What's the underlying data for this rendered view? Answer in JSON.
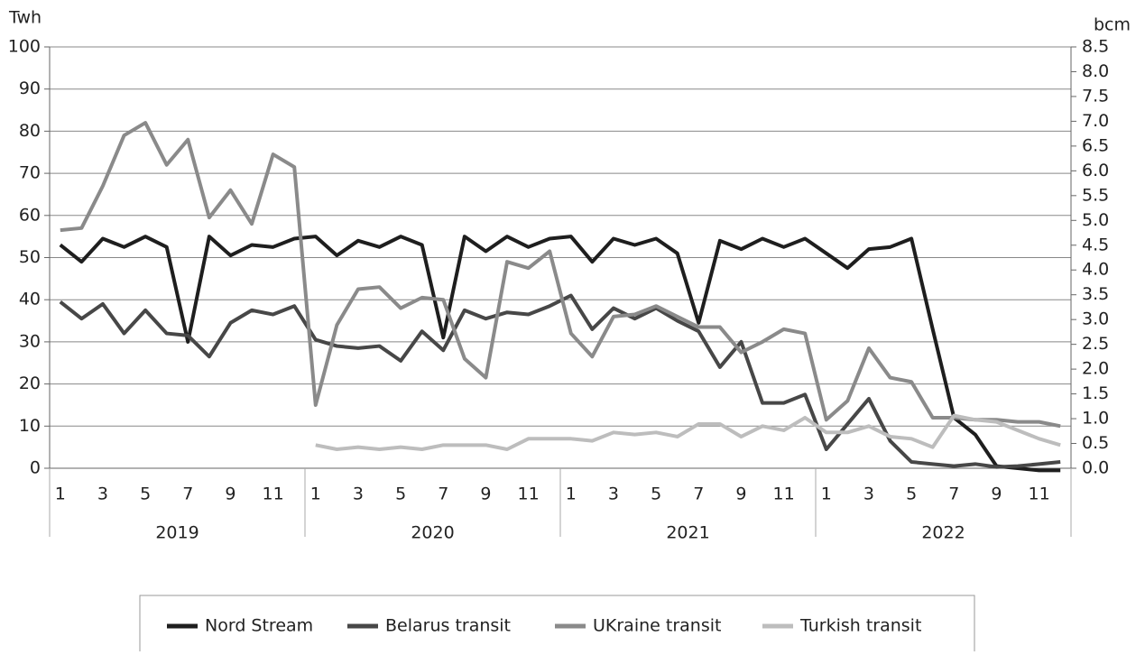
{
  "chart_data": {
    "type": "line",
    "y_label": "Twh",
    "y2_label": "bcm",
    "categories": [
      "1",
      null,
      "3",
      null,
      "5",
      null,
      "7",
      null,
      "9",
      null,
      "11",
      null,
      "1",
      null,
      "3",
      null,
      "5",
      null,
      "7",
      null,
      "9",
      null,
      "11",
      null,
      "1",
      null,
      "3",
      null,
      "5",
      null,
      "7",
      null,
      "9",
      null,
      "11",
      null,
      "1",
      null,
      "3",
      null,
      "5",
      null,
      "7",
      null,
      "9",
      null,
      "11",
      null
    ],
    "groups": [
      "2019",
      "2020",
      "2021",
      "2022"
    ],
    "series": [
      {
        "name": "Nord Stream",
        "color": "#1e1e1e",
        "values": [
          53,
          49,
          54.5,
          52.5,
          55,
          52.5,
          30,
          55,
          50.5,
          53,
          52.5,
          54.5,
          55,
          50.5,
          54,
          52.5,
          55,
          53,
          31,
          55,
          51.5,
          55,
          52.5,
          54.5,
          55,
          49,
          54.5,
          53,
          54.5,
          51,
          34.5,
          54,
          52,
          54.5,
          52.5,
          54.5,
          51,
          47.5,
          52,
          52.5,
          54.5,
          33,
          12,
          8,
          0.5,
          0,
          -0.5,
          -0.5
        ]
      },
      {
        "name": "Belarus transit",
        "color": "#474747",
        "values": [
          39.5,
          35.5,
          39,
          32,
          37.5,
          32,
          31.5,
          26.5,
          34.5,
          37.5,
          36.5,
          38.5,
          30.5,
          29,
          28.5,
          29,
          25.5,
          32.5,
          28,
          37.5,
          35.5,
          37,
          36.5,
          38.5,
          41,
          33,
          38,
          35.5,
          38,
          35,
          32.5,
          24,
          30,
          15.5,
          15.5,
          17.5,
          4.5,
          10.5,
          16.5,
          6.5,
          1.5,
          1,
          0.5,
          1,
          0.3,
          0.5,
          1,
          1.5
        ]
      },
      {
        "name": "UKraine transit",
        "color": "#8a8a8a",
        "values": [
          56.5,
          57,
          67,
          79,
          82,
          72,
          78,
          59.5,
          66,
          58,
          74.5,
          71.5,
          15,
          34,
          42.5,
          43,
          38,
          40.5,
          40,
          26,
          21.5,
          49,
          47.5,
          51.5,
          32,
          26.5,
          36,
          36.5,
          38.5,
          36,
          33.5,
          33.5,
          27.5,
          30,
          33,
          32,
          11.5,
          16,
          28.5,
          21.5,
          20.5,
          12,
          12,
          11.5,
          11.5,
          11,
          11,
          10
        ]
      },
      {
        "name": "Turkish  transit",
        "color": "#bdbdbd",
        "values": [
          null,
          null,
          null,
          null,
          null,
          null,
          null,
          null,
          null,
          null,
          null,
          null,
          5.5,
          4.5,
          5,
          4.5,
          5,
          4.5,
          5.5,
          5.5,
          5.5,
          4.5,
          7,
          7,
          7,
          6.5,
          8.5,
          8,
          8.5,
          7.5,
          10.5,
          10.5,
          7.5,
          10,
          9,
          12,
          8.5,
          8.5,
          10,
          7.5,
          7,
          5,
          12.5,
          11.5,
          11,
          9,
          7,
          5.5
        ]
      }
    ],
    "ylim": [
      0,
      100
    ],
    "yticks": [
      0,
      10,
      20,
      30,
      40,
      50,
      60,
      70,
      80,
      90,
      100
    ],
    "y2lim": [
      0,
      8.5
    ],
    "y2ticks": [
      {
        "value": 0,
        "label": "0.0"
      },
      0.5,
      {
        "value": 1,
        "label": "1.0"
      },
      1.5,
      {
        "value": 2,
        "label": "2.0"
      },
      2.5,
      {
        "value": 3,
        "label": "3.0"
      },
      3.5,
      {
        "value": 4,
        "label": "4.0"
      },
      4.5,
      {
        "value": 5,
        "label": "5.0"
      },
      5.5,
      {
        "value": 6,
        "label": "6.0"
      },
      6.5,
      {
        "value": 7,
        "label": "7.0"
      },
      7.5,
      {
        "value": 8,
        "label": "8.0"
      },
      8.5
    ],
    "grid": true,
    "legend": "bottom"
  }
}
